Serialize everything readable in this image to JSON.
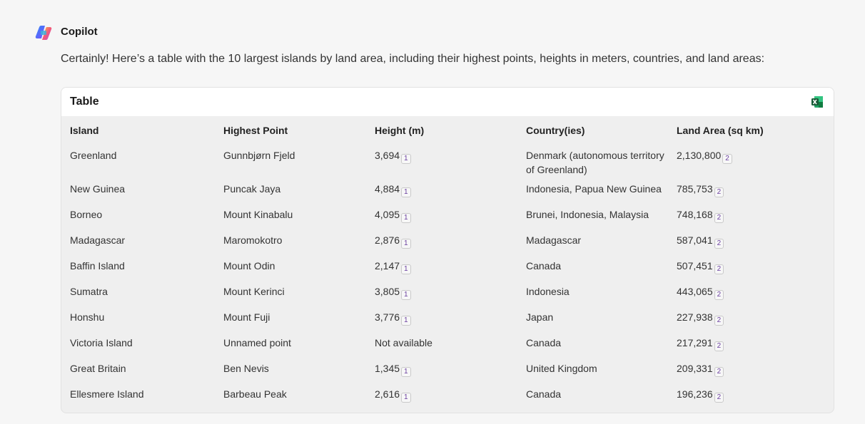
{
  "header": {
    "name": "Copilot"
  },
  "message": "Certainly! Here’s a table with the 10 largest islands by land area, including their highest points, heights in meters, countries, and land areas:",
  "table": {
    "title": "Table",
    "columns": [
      "Island",
      "Highest Point",
      "Height (m)",
      "Country(ies)",
      "Land Area (sq km)"
    ],
    "rows": [
      {
        "island": "Greenland",
        "highest_point": "Gunnbjørn Fjeld",
        "height": "3,694",
        "height_cite": "1",
        "country": "Denmark (autonomous territory of Greenland)",
        "area": "2,130,800",
        "area_cite": "2"
      },
      {
        "island": "New Guinea",
        "highest_point": "Puncak Jaya",
        "height": "4,884",
        "height_cite": "1",
        "country": "Indonesia, Papua New Guinea",
        "area": "785,753",
        "area_cite": "2"
      },
      {
        "island": "Borneo",
        "highest_point": "Mount Kinabalu",
        "height": "4,095",
        "height_cite": "1",
        "country": "Brunei, Indonesia, Malaysia",
        "area": "748,168",
        "area_cite": "2"
      },
      {
        "island": "Madagascar",
        "highest_point": "Maromokotro",
        "height": "2,876",
        "height_cite": "1",
        "country": "Madagascar",
        "area": "587,041",
        "area_cite": "2"
      },
      {
        "island": "Baffin Island",
        "highest_point": "Mount Odin",
        "height": "2,147",
        "height_cite": "1",
        "country": "Canada",
        "area": "507,451",
        "area_cite": "2"
      },
      {
        "island": "Sumatra",
        "highest_point": "Mount Kerinci",
        "height": "3,805",
        "height_cite": "1",
        "country": "Indonesia",
        "area": "443,065",
        "area_cite": "2"
      },
      {
        "island": "Honshu",
        "highest_point": "Mount Fuji",
        "height": "3,776",
        "height_cite": "1",
        "country": "Japan",
        "area": "227,938",
        "area_cite": "2"
      },
      {
        "island": "Victoria Island",
        "highest_point": "Unnamed point",
        "height": "Not available",
        "country": "Canada",
        "area": "217,291",
        "area_cite": "2"
      },
      {
        "island": "Great Britain",
        "highest_point": "Ben Nevis",
        "height": "1,345",
        "height_cite": "1",
        "country": "United Kingdom",
        "area": "209,331",
        "area_cite": "2"
      },
      {
        "island": "Ellesmere Island",
        "highest_point": "Barbeau Peak",
        "height": "2,616",
        "height_cite": "1",
        "country": "Canada",
        "area": "196,236",
        "area_cite": "2"
      }
    ]
  }
}
